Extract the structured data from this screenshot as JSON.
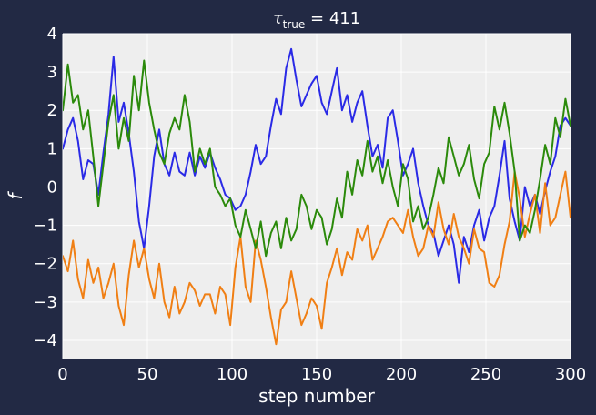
{
  "chart_data": {
    "type": "line",
    "title": {
      "symbol": "τ",
      "subscript": "true",
      "suffix": " = 411"
    },
    "xlabel": "step number",
    "ylabel": "f",
    "xlim": [
      0,
      300
    ],
    "ylim": [
      -4.5,
      4
    ],
    "xticks": [
      0,
      50,
      100,
      150,
      200,
      250,
      300
    ],
    "yticks": [
      -4,
      -3,
      -2,
      -1,
      0,
      1,
      2,
      3,
      4
    ],
    "grid": true,
    "colors": {
      "background": "#222944",
      "plot_background": "#eeeeee",
      "grid": "#ffffff",
      "text": "#ffffff"
    },
    "series": [
      {
        "color": "#2a2ae6",
        "x": [
          0,
          3,
          6,
          9,
          12,
          15,
          18,
          21,
          24,
          27,
          30,
          33,
          36,
          39,
          42,
          45,
          48,
          51,
          54,
          57,
          60,
          63,
          66,
          69,
          72,
          75,
          78,
          81,
          84,
          87,
          90,
          93,
          96,
          99,
          102,
          105,
          108,
          111,
          114,
          117,
          120,
          123,
          126,
          129,
          132,
          135,
          138,
          141,
          144,
          147,
          150,
          153,
          156,
          159,
          162,
          165,
          168,
          171,
          174,
          177,
          180,
          183,
          186,
          189,
          192,
          195,
          198,
          201,
          204,
          207,
          210,
          213,
          216,
          219,
          222,
          225,
          228,
          231,
          234,
          237,
          240,
          243,
          246,
          249,
          252,
          255,
          258,
          261,
          264,
          267,
          270,
          273,
          276,
          279,
          282,
          285,
          288,
          291,
          294,
          297,
          300
        ],
        "values": [
          1.0,
          1.5,
          1.8,
          1.2,
          0.2,
          0.7,
          0.6,
          -0.2,
          0.9,
          1.9,
          3.4,
          1.7,
          2.2,
          1.4,
          0.4,
          -0.9,
          -1.6,
          -0.5,
          0.8,
          1.5,
          0.6,
          0.3,
          0.9,
          0.4,
          0.3,
          0.9,
          0.3,
          0.8,
          0.5,
          0.9,
          0.5,
          0.2,
          -0.2,
          -0.3,
          -0.6,
          -0.5,
          -0.2,
          0.4,
          1.1,
          0.6,
          0.8,
          1.6,
          2.3,
          1.9,
          3.1,
          3.6,
          2.8,
          2.1,
          2.4,
          2.7,
          2.9,
          2.2,
          1.9,
          2.5,
          3.1,
          2.0,
          2.4,
          1.7,
          2.2,
          2.5,
          1.6,
          0.8,
          1.1,
          0.5,
          1.8,
          2.0,
          1.2,
          0.3,
          0.6,
          1.0,
          0.1,
          -0.5,
          -1.0,
          -1.2,
          -1.8,
          -1.4,
          -1.0,
          -1.5,
          -2.5,
          -1.3,
          -1.7,
          -1.0,
          -0.6,
          -1.4,
          -0.8,
          -0.5,
          0.3,
          1.2,
          -0.3,
          -0.9,
          -1.4,
          0.0,
          -0.5,
          -0.2,
          -0.7,
          -0.1,
          0.4,
          0.8,
          1.6,
          1.8,
          1.6
        ]
      },
      {
        "color": "#f07f14",
        "x": [
          0,
          3,
          6,
          9,
          12,
          15,
          18,
          21,
          24,
          27,
          30,
          33,
          36,
          39,
          42,
          45,
          48,
          51,
          54,
          57,
          60,
          63,
          66,
          69,
          72,
          75,
          78,
          81,
          84,
          87,
          90,
          93,
          96,
          99,
          102,
          105,
          108,
          111,
          114,
          117,
          120,
          123,
          126,
          129,
          132,
          135,
          138,
          141,
          144,
          147,
          150,
          153,
          156,
          159,
          162,
          165,
          168,
          171,
          174,
          177,
          180,
          183,
          186,
          189,
          192,
          195,
          198,
          201,
          204,
          207,
          210,
          213,
          216,
          219,
          222,
          225,
          228,
          231,
          234,
          237,
          240,
          243,
          246,
          249,
          252,
          255,
          258,
          261,
          264,
          267,
          270,
          273,
          276,
          279,
          282,
          285,
          288,
          291,
          294,
          297,
          300
        ],
        "values": [
          -1.8,
          -2.2,
          -1.4,
          -2.4,
          -2.9,
          -1.9,
          -2.5,
          -2.1,
          -2.9,
          -2.5,
          -2.0,
          -3.1,
          -3.6,
          -2.3,
          -1.4,
          -2.1,
          -1.6,
          -2.4,
          -2.9,
          -2.0,
          -3.0,
          -3.4,
          -2.6,
          -3.3,
          -3.0,
          -2.5,
          -2.7,
          -3.1,
          -2.8,
          -2.8,
          -3.3,
          -2.6,
          -2.8,
          -3.6,
          -2.1,
          -1.3,
          -2.6,
          -3.0,
          -1.4,
          -1.9,
          -2.6,
          -3.4,
          -4.1,
          -3.2,
          -3.0,
          -2.2,
          -2.9,
          -3.6,
          -3.3,
          -2.9,
          -3.1,
          -3.7,
          -2.5,
          -2.1,
          -1.6,
          -2.3,
          -1.7,
          -1.9,
          -1.1,
          -1.4,
          -1.0,
          -1.9,
          -1.6,
          -1.3,
          -0.9,
          -0.8,
          -1.0,
          -1.2,
          -0.6,
          -1.3,
          -1.8,
          -1.6,
          -1.0,
          -1.3,
          -0.4,
          -1.1,
          -1.5,
          -0.7,
          -1.3,
          -1.6,
          -2.0,
          -1.1,
          -1.6,
          -1.7,
          -2.5,
          -2.6,
          -2.3,
          -1.5,
          -0.9,
          0.4,
          -0.3,
          -1.3,
          -0.7,
          -0.2,
          -1.2,
          0.1,
          -1.0,
          -0.8,
          -0.2,
          0.4,
          -0.8
        ]
      },
      {
        "color": "#2b8a0b",
        "x": [
          0,
          3,
          6,
          9,
          12,
          15,
          18,
          21,
          24,
          27,
          30,
          33,
          36,
          39,
          42,
          45,
          48,
          51,
          54,
          57,
          60,
          63,
          66,
          69,
          72,
          75,
          78,
          81,
          84,
          87,
          90,
          93,
          96,
          99,
          102,
          105,
          108,
          111,
          114,
          117,
          120,
          123,
          126,
          129,
          132,
          135,
          138,
          141,
          144,
          147,
          150,
          153,
          156,
          159,
          162,
          165,
          168,
          171,
          174,
          177,
          180,
          183,
          186,
          189,
          192,
          195,
          198,
          201,
          204,
          207,
          210,
          213,
          216,
          219,
          222,
          225,
          228,
          231,
          234,
          237,
          240,
          243,
          246,
          249,
          252,
          255,
          258,
          261,
          264,
          267,
          270,
          273,
          276,
          279,
          282,
          285,
          288,
          291,
          294,
          297,
          300
        ],
        "values": [
          2.0,
          3.2,
          2.2,
          2.4,
          1.5,
          2.0,
          0.8,
          -0.5,
          0.6,
          1.7,
          2.4,
          1.0,
          1.8,
          1.2,
          2.9,
          2.0,
          3.3,
          2.2,
          1.5,
          0.9,
          0.6,
          1.4,
          1.8,
          1.5,
          2.4,
          1.7,
          0.4,
          1.0,
          0.6,
          1.0,
          0.0,
          -0.2,
          -0.5,
          -0.3,
          -1.0,
          -1.3,
          -0.6,
          -1.1,
          -1.6,
          -0.9,
          -1.8,
          -1.2,
          -0.9,
          -1.6,
          -0.8,
          -1.4,
          -1.1,
          -0.2,
          -0.5,
          -1.1,
          -0.6,
          -0.8,
          -1.5,
          -1.1,
          -0.3,
          -0.8,
          0.4,
          -0.2,
          0.7,
          0.3,
          1.2,
          0.4,
          0.8,
          0.1,
          0.7,
          0.0,
          -0.5,
          0.6,
          0.2,
          -0.9,
          -0.5,
          -1.1,
          -0.8,
          -0.2,
          0.5,
          0.1,
          1.3,
          0.8,
          0.3,
          0.6,
          1.1,
          0.2,
          -0.3,
          0.6,
          0.9,
          2.1,
          1.5,
          2.2,
          1.4,
          0.4,
          -1.4,
          -1.0,
          -1.2,
          -0.6,
          0.2,
          1.1,
          0.6,
          1.8,
          1.3,
          2.3,
          1.6
        ]
      }
    ]
  }
}
